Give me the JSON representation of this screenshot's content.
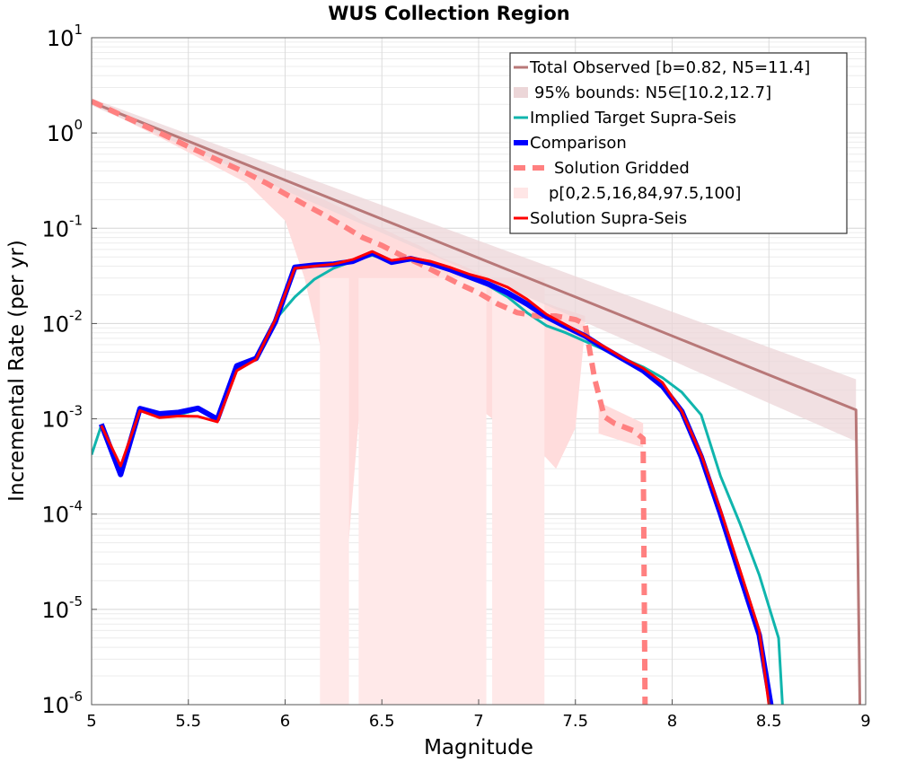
{
  "chart_data": {
    "type": "line",
    "title": "WUS Collection Region",
    "xlabel": "Magnitude",
    "ylabel": "Incremental Rate (per yr)",
    "xlim": [
      5,
      9
    ],
    "ylim": [
      1e-06,
      10
    ],
    "yscale": "log",
    "grid": true,
    "legend_position": "top-right",
    "x_ticks": [
      "5",
      "5.5",
      "6",
      "6.5",
      "7",
      "7.5",
      "8",
      "8.5",
      "9"
    ],
    "y_ticks": [
      {
        "base": "10",
        "exp": "1"
      },
      {
        "base": "10",
        "exp": "0"
      },
      {
        "base": "10",
        "exp": "-1"
      },
      {
        "base": "10",
        "exp": "-2"
      },
      {
        "base": "10",
        "exp": "-3"
      },
      {
        "base": "10",
        "exp": "-4"
      },
      {
        "base": "10",
        "exp": "-5"
      },
      {
        "base": "10",
        "exp": "-6"
      }
    ],
    "legend": [
      {
        "label": "Total Observed [b=0.82, N5=11.4]",
        "style": "line",
        "color": "#b87878"
      },
      {
        "label": "95% bounds: N5∈[10.2,12.7]",
        "style": "band",
        "color": "#ecd6d8"
      },
      {
        "label": "Implied Target Supra-Seis",
        "style": "line",
        "color": "#10b5ad"
      },
      {
        "label": "Comparison",
        "style": "thick-line",
        "color": "#0000ff"
      },
      {
        "label": "Solution Gridded",
        "style": "dashed",
        "color": "#ff8080"
      },
      {
        "label": "p[0,2.5,16,84,97.5,100]",
        "style": "band",
        "color": "#ffe6e6"
      },
      {
        "label": "Solution Supra-Seis",
        "style": "line",
        "color": "#ff0000"
      }
    ],
    "series": [
      {
        "name": "Total Observed [b=0.82, N5=11.4]",
        "color": "#b87878",
        "x": [
          5.0,
          8.95,
          8.95,
          8.97
        ],
        "y": [
          2.1,
          0.00124,
          0.00124,
          1e-06
        ]
      },
      {
        "name": "95% bounds: N5∈[10.2,12.7]",
        "type": "band",
        "color": "#ecd6d8",
        "x": [
          5.0,
          8.95
        ],
        "lower": [
          1.95,
          0.00058
        ],
        "upper": [
          2.3,
          0.0026
        ]
      },
      {
        "name": "Implied Target Supra-Seis",
        "color": "#10b5ad",
        "x": [
          5.0,
          5.05,
          5.15,
          5.25,
          5.35,
          5.45,
          5.55,
          5.65,
          5.75,
          5.85,
          5.95,
          6.05,
          6.15,
          6.25,
          6.35,
          6.45,
          6.55,
          6.65,
          6.75,
          6.85,
          6.95,
          7.05,
          7.15,
          7.25,
          7.35,
          7.45,
          7.55,
          7.65,
          7.75,
          7.85,
          7.95,
          8.05,
          8.15,
          8.25,
          8.35,
          8.45,
          8.55,
          8.57
        ],
        "y": [
          0.00042,
          0.00085,
          0.00029,
          0.00125,
          0.00108,
          0.0011,
          0.00125,
          0.00098,
          0.0034,
          0.0043,
          0.011,
          0.019,
          0.029,
          0.038,
          0.045,
          0.052,
          0.045,
          0.046,
          0.042,
          0.036,
          0.03,
          0.025,
          0.019,
          0.013,
          0.0095,
          0.008,
          0.0065,
          0.0053,
          0.0043,
          0.0035,
          0.0027,
          0.0019,
          0.0011,
          0.00025,
          8e-05,
          2.3e-05,
          5e-06,
          1e-06
        ]
      },
      {
        "name": "Comparison",
        "color": "#0000ff",
        "x": [
          5.05,
          5.15,
          5.25,
          5.35,
          5.45,
          5.55,
          5.65,
          5.75,
          5.85,
          5.95,
          6.05,
          6.15,
          6.25,
          6.35,
          6.45,
          6.55,
          6.65,
          6.75,
          6.85,
          6.95,
          7.05,
          7.15,
          7.25,
          7.35,
          7.45,
          7.55,
          7.65,
          7.75,
          7.85,
          7.95,
          8.05,
          8.15,
          8.25,
          8.35,
          8.45,
          8.51
        ],
        "y": [
          0.00088,
          0.00026,
          0.00128,
          0.00113,
          0.00117,
          0.00129,
          0.00099,
          0.0036,
          0.0043,
          0.0105,
          0.039,
          0.041,
          0.042,
          0.045,
          0.055,
          0.044,
          0.048,
          0.043,
          0.037,
          0.031,
          0.026,
          0.021,
          0.016,
          0.0118,
          0.0093,
          0.0074,
          0.0055,
          0.0042,
          0.0032,
          0.0022,
          0.0012,
          0.0004,
          0.0001,
          2.3e-05,
          5.4e-06,
          1e-06
        ]
      },
      {
        "name": "Solution Gridded",
        "color": "#ff8080",
        "x": [
          5.0,
          5.1,
          5.2,
          5.3,
          5.4,
          5.5,
          5.6,
          5.7,
          5.8,
          5.9,
          6.0,
          6.1,
          6.2,
          6.3,
          6.4,
          6.5,
          6.6,
          6.7,
          6.8,
          6.9,
          7.0,
          7.1,
          7.2,
          7.3,
          7.4,
          7.5,
          7.55,
          7.6,
          7.65,
          7.7,
          7.8,
          7.85,
          7.86
        ],
        "y": [
          2.15,
          1.73,
          1.39,
          1.12,
          0.9,
          0.72,
          0.58,
          0.47,
          0.38,
          0.3,
          0.23,
          0.178,
          0.139,
          0.106,
          0.08,
          0.066,
          0.052,
          0.042,
          0.033,
          0.026,
          0.021,
          0.016,
          0.013,
          0.012,
          0.012,
          0.011,
          0.0099,
          0.0026,
          0.00105,
          0.0009,
          0.00075,
          0.00062,
          1e-06
        ]
      },
      {
        "name": "Solution Supra-Seis",
        "color": "#ff0000",
        "x": [
          5.05,
          5.15,
          5.25,
          5.35,
          5.45,
          5.55,
          5.65,
          5.75,
          5.85,
          5.95,
          6.05,
          6.15,
          6.25,
          6.35,
          6.45,
          6.55,
          6.65,
          6.75,
          6.85,
          6.95,
          7.05,
          7.15,
          7.25,
          7.35,
          7.45,
          7.55,
          7.65,
          7.75,
          7.85,
          7.95,
          8.05,
          8.15,
          8.25,
          8.35,
          8.45,
          8.5
        ],
        "y": [
          0.00085,
          0.00032,
          0.00122,
          0.00103,
          0.00107,
          0.00106,
          0.00093,
          0.0032,
          0.0042,
          0.011,
          0.038,
          0.04,
          0.042,
          0.047,
          0.057,
          0.046,
          0.049,
          0.045,
          0.039,
          0.033,
          0.029,
          0.024,
          0.018,
          0.0125,
          0.0097,
          0.0075,
          0.0057,
          0.0043,
          0.0034,
          0.0024,
          0.0012,
          0.00042,
          0.00011,
          2.6e-05,
          6e-06,
          1e-06
        ]
      }
    ]
  }
}
